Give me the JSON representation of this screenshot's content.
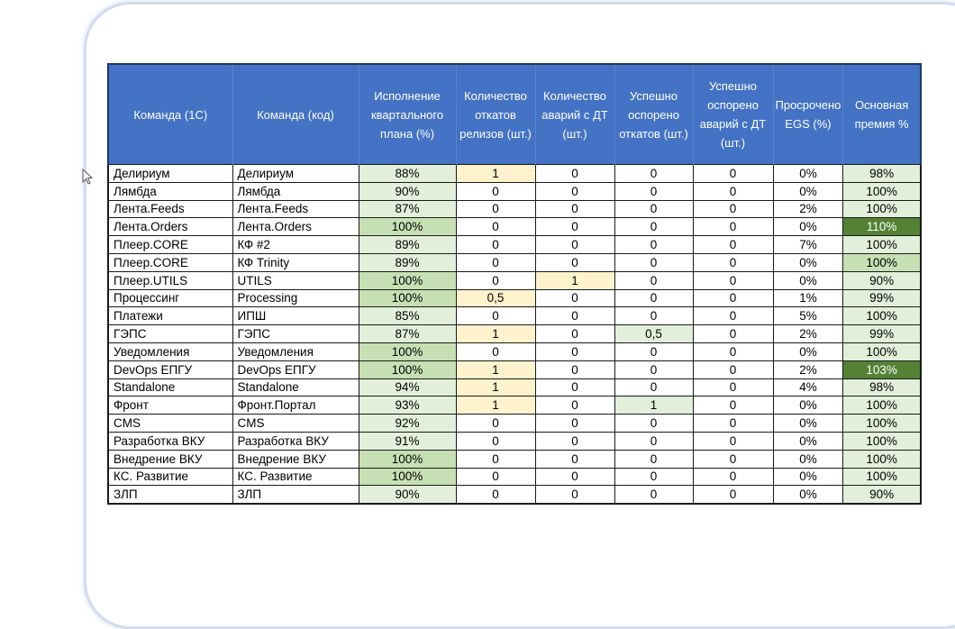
{
  "headers": [
    "Команда (1С)",
    "Команда (код)",
    "Исполнение квартального плана (%)",
    "Количество откатов релизов (шт.)",
    "Количество аварий с ДТ (шт.)",
    "Успешно оспорено откатов (шт.)",
    "Успешно оспорено аварий с ДТ (шт.)",
    "Просрочено EGS (%)",
    "Основная премия %"
  ],
  "rows": [
    [
      "Делириум",
      "Делириум",
      "88%",
      "1",
      "0",
      "0",
      "0",
      "0%",
      "98%"
    ],
    [
      "Лямбда",
      "Лямбда",
      "90%",
      "0",
      "0",
      "0",
      "0",
      "0%",
      "100%"
    ],
    [
      "Лента.Feeds",
      "Лента.Feeds",
      "87%",
      "0",
      "0",
      "0",
      "0",
      "2%",
      "100%"
    ],
    [
      "Лента.Orders",
      "Лента.Orders",
      "100%",
      "0",
      "0",
      "0",
      "0",
      "0%",
      "110%"
    ],
    [
      "Плеер.CORE",
      "КФ #2",
      "89%",
      "0",
      "0",
      "0",
      "0",
      "7%",
      "100%"
    ],
    [
      "Плеер.CORE",
      "КФ Trinity",
      "89%",
      "0",
      "0",
      "0",
      "0",
      "0%",
      "100%"
    ],
    [
      "Плеер.UTILS",
      "UTILS",
      "100%",
      "0",
      "1",
      "0",
      "0",
      "0%",
      "90%"
    ],
    [
      "Процессинг",
      "Processing",
      "100%",
      "0,5",
      "0",
      "0",
      "0",
      "1%",
      "99%"
    ],
    [
      "Платежи",
      "ИПШ",
      "85%",
      "0",
      "0",
      "0",
      "0",
      "5%",
      "100%"
    ],
    [
      "ГЭПС",
      "ГЭПС",
      "87%",
      "1",
      "0",
      "0,5",
      "0",
      "2%",
      "99%"
    ],
    [
      "Уведомления",
      "Уведомления",
      "100%",
      "0",
      "0",
      "0",
      "0",
      "0%",
      "100%"
    ],
    [
      "DevOps ЕПГУ",
      "DevOps ЕПГУ",
      "100%",
      "1",
      "0",
      "0",
      "0",
      "2%",
      "103%"
    ],
    [
      "Standalone",
      "Standalone",
      "94%",
      "1",
      "0",
      "0",
      "0",
      "4%",
      "98%"
    ],
    [
      "Фронт",
      "Фронт.Портал",
      "93%",
      "1",
      "0",
      "1",
      "0",
      "0%",
      "100%"
    ],
    [
      "CMS",
      "CMS",
      "92%",
      "0",
      "0",
      "0",
      "0",
      "0%",
      "100%"
    ],
    [
      "Разработка ВКУ",
      "Разработка ВКУ",
      "91%",
      "0",
      "0",
      "0",
      "0",
      "0%",
      "100%"
    ],
    [
      "Внедрение ВКУ",
      "Внедрение ВКУ",
      "100%",
      "0",
      "0",
      "0",
      "0",
      "0%",
      "100%"
    ],
    [
      "КС. Развитие",
      "КС. Развитие",
      "100%",
      "0",
      "0",
      "0",
      "0",
      "0%",
      "100%"
    ],
    [
      "ЗЛП",
      "ЗЛП",
      "90%",
      "0",
      "0",
      "0",
      "0",
      "0%",
      "90%"
    ]
  ],
  "fills": [
    [
      "",
      "",
      "g1",
      "y1",
      "",
      "",
      "",
      "",
      "g1"
    ],
    [
      "",
      "",
      "g1",
      "",
      "",
      "",
      "",
      "",
      "g1"
    ],
    [
      "",
      "",
      "g1",
      "",
      "",
      "",
      "",
      "",
      "g1"
    ],
    [
      "",
      "",
      "g2",
      "",
      "",
      "",
      "",
      "",
      "g3"
    ],
    [
      "",
      "",
      "g1",
      "",
      "",
      "",
      "",
      "",
      "g1"
    ],
    [
      "",
      "",
      "g1",
      "",
      "",
      "",
      "",
      "",
      "g2"
    ],
    [
      "",
      "",
      "g2",
      "",
      "y1",
      "",
      "",
      "",
      "g1"
    ],
    [
      "",
      "",
      "g2",
      "y1",
      "",
      "",
      "",
      "",
      "g1"
    ],
    [
      "",
      "",
      "g1",
      "",
      "",
      "",
      "",
      "",
      "g1"
    ],
    [
      "",
      "",
      "g1",
      "y1",
      "",
      "g1",
      "",
      "",
      "g1"
    ],
    [
      "",
      "",
      "g2",
      "",
      "",
      "",
      "",
      "",
      "g1"
    ],
    [
      "",
      "",
      "g2",
      "y1",
      "",
      "",
      "",
      "",
      "g3"
    ],
    [
      "",
      "",
      "g1",
      "y1",
      "",
      "",
      "",
      "",
      "g1"
    ],
    [
      "",
      "",
      "g1",
      "y1",
      "",
      "g1",
      "",
      "",
      "g1"
    ],
    [
      "",
      "",
      "g1",
      "",
      "",
      "",
      "",
      "",
      "g1"
    ],
    [
      "",
      "",
      "g1",
      "",
      "",
      "",
      "",
      "",
      "g1"
    ],
    [
      "",
      "",
      "g2",
      "",
      "",
      "",
      "",
      "",
      "g1"
    ],
    [
      "",
      "",
      "g2",
      "",
      "",
      "",
      "",
      "",
      "g1"
    ],
    [
      "",
      "",
      "g1",
      "",
      "",
      "",
      "",
      "",
      "g1"
    ]
  ],
  "colors": {
    "header_bg": "#4472c4",
    "green_light": "#e2efda",
    "green_mid": "#c6e0b4",
    "green_dark": "#548235",
    "yellow": "#fff2cc"
  }
}
